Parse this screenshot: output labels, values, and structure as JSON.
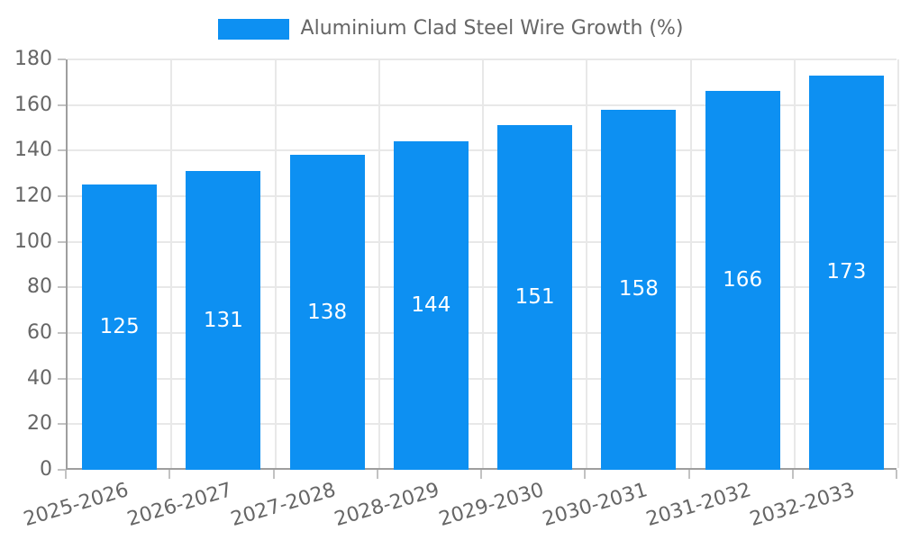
{
  "legend": {
    "label": "Aluminium Clad Steel Wire Growth (%)"
  },
  "chart_data": {
    "type": "bar",
    "title": "Aluminium Clad Steel Wire Growth (%)",
    "categories": [
      "2025-2026",
      "2026-2027",
      "2027-2028",
      "2028-2029",
      "2029-2030",
      "2030-2031",
      "2031-2032",
      "2032-2033"
    ],
    "values": [
      125,
      131,
      138,
      144,
      151,
      158,
      166,
      173
    ],
    "value_labels": [
      "125",
      "131",
      "138",
      "144",
      "151",
      "158",
      "166",
      "173"
    ],
    "xlabel": "",
    "ylabel": "",
    "ylim": [
      0,
      180
    ],
    "ytick_step": 20,
    "y_ticks": [
      "0",
      "20",
      "40",
      "60",
      "80",
      "100",
      "120",
      "140",
      "160",
      "180"
    ],
    "grid": true,
    "legend_position": "top-center",
    "colors": {
      "bar": "#0d90f2",
      "value_label": "#ffffff",
      "axis_text": "#666666",
      "grid_line": "#e8e8e8",
      "axis_border": "#9e9e9e",
      "tick_mark": "#c2c2c2"
    }
  }
}
